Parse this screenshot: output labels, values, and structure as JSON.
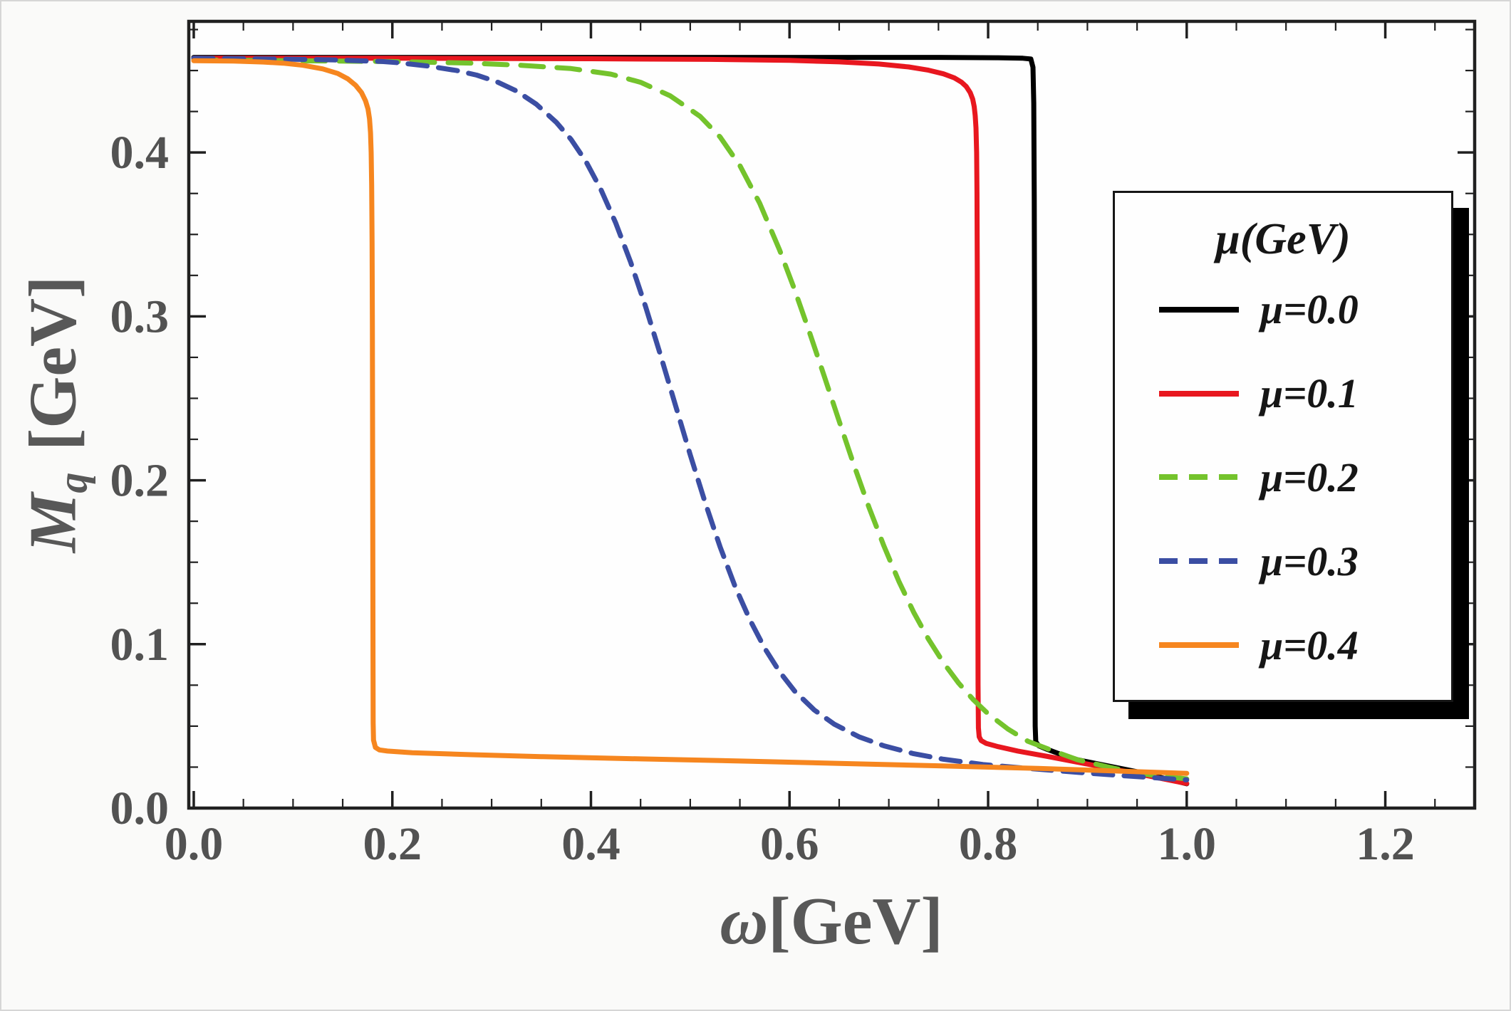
{
  "figure": {
    "bg": "#fafaf9",
    "plot_bg": "#fefefe",
    "frame_color": "#202020",
    "tick_label_color": "#525252",
    "axis_label_color": "#585858",
    "xlabel_symbol": "ω",
    "xlabel_unit": "[GeV]",
    "ylabel_symbol": "M",
    "ylabel_sub": "q",
    "ylabel_unit": " [GeV]"
  },
  "legend": {
    "title": "μ(GeV)",
    "bg": "#fefefe",
    "border_color": "#161616",
    "shadow_color": "#000000",
    "text_color": "#161616"
  },
  "chart_data": {
    "type": "line",
    "title": "",
    "xlabel": "ω[GeV]",
    "ylabel": "M_q [GeV]",
    "xlim": [
      -0.005,
      1.29
    ],
    "ylim": [
      0,
      0.48
    ],
    "xticks": [
      0.0,
      0.2,
      0.4,
      0.6,
      0.8,
      1.0,
      1.2
    ],
    "yticks": [
      0.0,
      0.1,
      0.2,
      0.3,
      0.4
    ],
    "x_minor_step": 0.05,
    "y_minor_step": 0.025,
    "legend_title": "μ(GeV)",
    "legend_position": "upper right inside",
    "series": [
      {
        "id": "mu-0.0",
        "name": "μ=0.0",
        "color": "#000000",
        "dash": null,
        "width": 7,
        "points": [
          [
            0,
            0.458
          ],
          [
            0.2,
            0.458
          ],
          [
            0.4,
            0.458
          ],
          [
            0.6,
            0.458
          ],
          [
            0.75,
            0.458
          ],
          [
            0.81,
            0.4578
          ],
          [
            0.835,
            0.4575
          ],
          [
            0.843,
            0.457
          ],
          [
            0.8452,
            0.452
          ],
          [
            0.846,
            0.43
          ],
          [
            0.8465,
            0.37
          ],
          [
            0.8468,
            0.28
          ],
          [
            0.847,
            0.18
          ],
          [
            0.8472,
            0.09
          ],
          [
            0.8474,
            0.05
          ],
          [
            0.848,
            0.0405
          ],
          [
            0.851,
            0.038
          ],
          [
            0.858,
            0.0362
          ],
          [
            0.87,
            0.0335
          ],
          [
            0.89,
            0.0295
          ],
          [
            0.92,
            0.0258
          ],
          [
            0.95,
            0.0222
          ],
          [
            0.975,
            0.0185
          ],
          [
            1,
            0.0148
          ]
        ]
      },
      {
        "id": "mu-0.1",
        "name": "μ=0.1",
        "color": "#e8171f",
        "dash": null,
        "width": 7,
        "points": [
          [
            0,
            0.4575
          ],
          [
            0.2,
            0.4575
          ],
          [
            0.4,
            0.4572
          ],
          [
            0.52,
            0.4568
          ],
          [
            0.6,
            0.4562
          ],
          [
            0.65,
            0.4553
          ],
          [
            0.69,
            0.454
          ],
          [
            0.72,
            0.4522
          ],
          [
            0.74,
            0.4502
          ],
          [
            0.755,
            0.448
          ],
          [
            0.766,
            0.4455
          ],
          [
            0.773,
            0.443
          ],
          [
            0.778,
            0.4402
          ],
          [
            0.782,
            0.4365
          ],
          [
            0.7845,
            0.4325
          ],
          [
            0.786,
            0.428
          ],
          [
            0.787,
            0.4225
          ],
          [
            0.7878,
            0.415
          ],
          [
            0.7884,
            0.4
          ],
          [
            0.7888,
            0.375
          ],
          [
            0.7891,
            0.33
          ],
          [
            0.7893,
            0.27
          ],
          [
            0.7895,
            0.2
          ],
          [
            0.7897,
            0.13
          ],
          [
            0.7899,
            0.075
          ],
          [
            0.7902,
            0.049
          ],
          [
            0.791,
            0.0435
          ],
          [
            0.793,
            0.0412
          ],
          [
            0.798,
            0.0395
          ],
          [
            0.81,
            0.0375
          ],
          [
            0.83,
            0.0348
          ],
          [
            0.86,
            0.0315
          ],
          [
            0.89,
            0.028
          ],
          [
            0.92,
            0.0245
          ],
          [
            0.95,
            0.021
          ],
          [
            0.975,
            0.018
          ],
          [
            1,
            0.015
          ]
        ]
      },
      {
        "id": "mu-0.2",
        "name": "μ=0.2",
        "color": "#74c32c",
        "dash": "32 19",
        "width": 7,
        "points": [
          [
            0,
            0.4565
          ],
          [
            0.1,
            0.456
          ],
          [
            0.2,
            0.4555
          ],
          [
            0.28,
            0.4545
          ],
          [
            0.33,
            0.4532
          ],
          [
            0.38,
            0.4512
          ],
          [
            0.42,
            0.4478
          ],
          [
            0.45,
            0.4428
          ],
          [
            0.48,
            0.4345
          ],
          [
            0.51,
            0.422
          ],
          [
            0.53,
            0.4095
          ],
          [
            0.55,
            0.392
          ],
          [
            0.57,
            0.369
          ],
          [
            0.59,
            0.3405
          ],
          [
            0.605,
            0.3165
          ],
          [
            0.62,
            0.2905
          ],
          [
            0.635,
            0.2635
          ],
          [
            0.65,
            0.236
          ],
          [
            0.665,
            0.209
          ],
          [
            0.68,
            0.1835
          ],
          [
            0.695,
            0.16
          ],
          [
            0.71,
            0.1385
          ],
          [
            0.725,
            0.1195
          ],
          [
            0.74,
            0.103
          ],
          [
            0.755,
            0.0887
          ],
          [
            0.77,
            0.0765
          ],
          [
            0.785,
            0.0662
          ],
          [
            0.8,
            0.0575
          ],
          [
            0.82,
            0.0482
          ],
          [
            0.84,
            0.0408
          ],
          [
            0.865,
            0.035
          ],
          [
            0.89,
            0.0295
          ],
          [
            0.92,
            0.0252
          ],
          [
            0.95,
            0.0212
          ],
          [
            1,
            0.0178
          ]
        ]
      },
      {
        "id": "mu-0.3",
        "name": "μ=0.3",
        "color": "#3b4ea3",
        "dash": "27 16",
        "width": 7,
        "points": [
          [
            0,
            0.4575
          ],
          [
            0.08,
            0.457
          ],
          [
            0.14,
            0.4565
          ],
          [
            0.19,
            0.4555
          ],
          [
            0.205,
            0.4548
          ],
          [
            0.235,
            0.4528
          ],
          [
            0.265,
            0.45
          ],
          [
            0.285,
            0.4472
          ],
          [
            0.305,
            0.4432
          ],
          [
            0.325,
            0.4375
          ],
          [
            0.345,
            0.4295
          ],
          [
            0.365,
            0.4185
          ],
          [
            0.38,
            0.408
          ],
          [
            0.395,
            0.3945
          ],
          [
            0.41,
            0.3775
          ],
          [
            0.425,
            0.357
          ],
          [
            0.44,
            0.333
          ],
          [
            0.455,
            0.306
          ],
          [
            0.47,
            0.2765
          ],
          [
            0.485,
            0.246
          ],
          [
            0.5,
            0.2155
          ],
          [
            0.515,
            0.1865
          ],
          [
            0.53,
            0.1595
          ],
          [
            0.545,
            0.1355
          ],
          [
            0.56,
            0.115
          ],
          [
            0.575,
            0.0975
          ],
          [
            0.59,
            0.0832
          ],
          [
            0.605,
            0.0715
          ],
          [
            0.625,
            0.0598
          ],
          [
            0.645,
            0.0512
          ],
          [
            0.67,
            0.0435
          ],
          [
            0.695,
            0.038
          ],
          [
            0.725,
            0.0332
          ],
          [
            0.755,
            0.0298
          ],
          [
            0.795,
            0.0266
          ],
          [
            0.84,
            0.0242
          ],
          [
            0.89,
            0.0218
          ],
          [
            0.94,
            0.0196
          ],
          [
            1,
            0.0172
          ]
        ]
      },
      {
        "id": "mu-0.4",
        "name": "μ=0.4",
        "color": "#f6861f",
        "dash": null,
        "width": 7,
        "points": [
          [
            0,
            0.456
          ],
          [
            0.04,
            0.4558
          ],
          [
            0.07,
            0.4552
          ],
          [
            0.09,
            0.4545
          ],
          [
            0.11,
            0.4532
          ],
          [
            0.13,
            0.451
          ],
          [
            0.145,
            0.4482
          ],
          [
            0.155,
            0.445
          ],
          [
            0.163,
            0.441
          ],
          [
            0.169,
            0.4365
          ],
          [
            0.173,
            0.4315
          ],
          [
            0.1755,
            0.4265
          ],
          [
            0.177,
            0.4205
          ],
          [
            0.178,
            0.412
          ],
          [
            0.1787,
            0.4
          ],
          [
            0.1792,
            0.38
          ],
          [
            0.1796,
            0.345
          ],
          [
            0.1799,
            0.295
          ],
          [
            0.1801,
            0.23
          ],
          [
            0.1803,
            0.16
          ],
          [
            0.1805,
            0.09
          ],
          [
            0.1807,
            0.052
          ],
          [
            0.181,
            0.0415
          ],
          [
            0.183,
            0.037
          ],
          [
            0.187,
            0.0355
          ],
          [
            0.195,
            0.0348
          ],
          [
            0.22,
            0.0338
          ],
          [
            0.28,
            0.0326
          ],
          [
            0.35,
            0.0314
          ],
          [
            0.45,
            0.03
          ],
          [
            0.55,
            0.0287
          ],
          [
            0.65,
            0.0273
          ],
          [
            0.75,
            0.0258
          ],
          [
            0.85,
            0.0242
          ],
          [
            0.95,
            0.0222
          ],
          [
            1,
            0.0212
          ]
        ]
      }
    ]
  }
}
